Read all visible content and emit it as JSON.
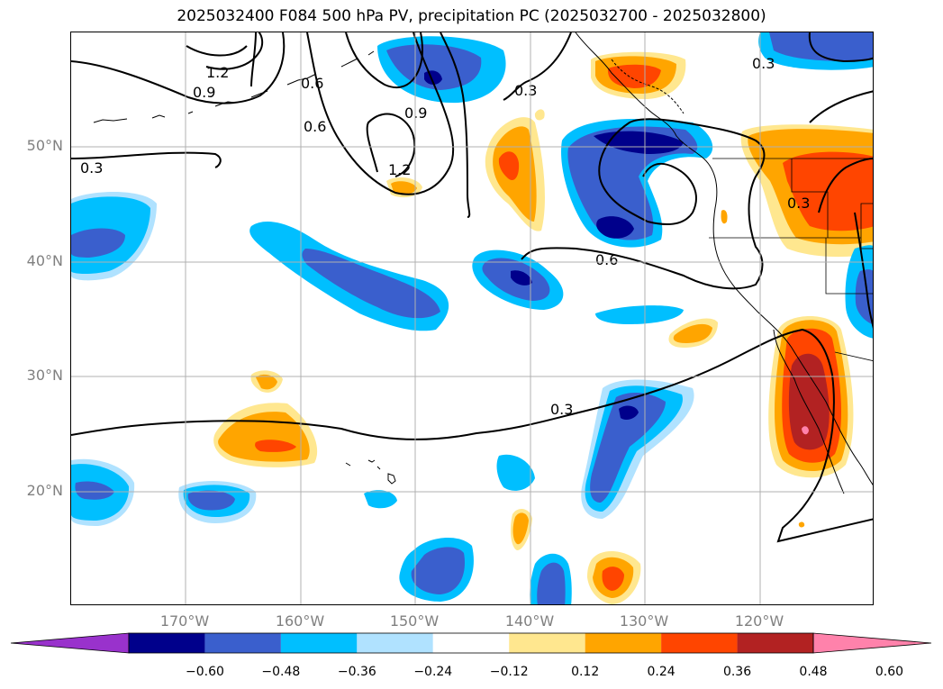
{
  "title": "2025032400 F084 500 hPa PV, precipitation PC (2025032700 - 2025032800)",
  "lat_labels": [
    "50°N",
    "40°N",
    "30°N",
    "20°N"
  ],
  "lon_labels": [
    "170°W",
    "160°W",
    "150°W",
    "140°W",
    "130°W",
    "120°W"
  ],
  "colorbar": {
    "ticks": [
      "−0.60",
      "−0.48",
      "−0.36",
      "−0.24",
      "−0.12",
      "0.12",
      "0.24",
      "0.36",
      "0.48",
      "0.60"
    ],
    "colors": [
      "#9932cc",
      "#00008b",
      "#3a5fcd",
      "#00bfff",
      "#b0e2ff",
      "#ffffff",
      "#ffe78f",
      "#ffa500",
      "#ff4500",
      "#b22222",
      "#ff82ab"
    ]
  },
  "contour_labels": [
    "1.2",
    "0.9",
    "0.6",
    "0.6",
    "0.9",
    "1.2",
    "0.3",
    "0.3",
    "0.3",
    "0.6",
    "0.3",
    "0.3"
  ]
}
